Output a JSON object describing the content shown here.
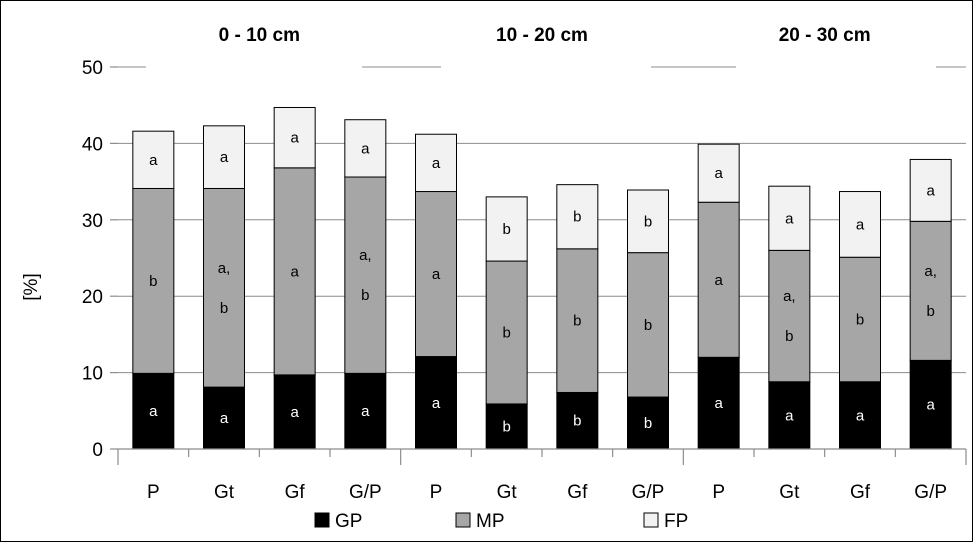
{
  "chart_data": {
    "type": "bar",
    "stacked": true,
    "ylabel": "[%]",
    "ylim": [
      0,
      50
    ],
    "yticks": [
      0,
      10,
      20,
      30,
      40,
      50
    ],
    "grid": "horizontal",
    "legend_position": "bottom",
    "groups": [
      {
        "title": "0 - 10 cm",
        "categories": [
          "P",
          "Gt",
          "Gf",
          "G/P"
        ],
        "GP": [
          9.9,
          8.1,
          9.7,
          9.9
        ],
        "MP": [
          24.2,
          26.0,
          27.1,
          25.7
        ],
        "FP": [
          7.5,
          8.2,
          7.9,
          7.5
        ],
        "GP_letters": [
          "a",
          "a",
          "a",
          "a"
        ],
        "MP_letters": [
          "b",
          "a,\nb",
          "a",
          "a,\nb"
        ],
        "FP_letters": [
          "a",
          "a",
          "a",
          "a"
        ]
      },
      {
        "title": "10 - 20 cm",
        "categories": [
          "P",
          "Gt",
          "Gf",
          "G/P"
        ],
        "GP": [
          12.1,
          5.9,
          7.4,
          6.8
        ],
        "MP": [
          21.6,
          18.7,
          18.8,
          18.9
        ],
        "FP": [
          7.5,
          8.4,
          8.4,
          8.2
        ],
        "GP_letters": [
          "a",
          "b",
          "b",
          "b"
        ],
        "MP_letters": [
          "a",
          "b",
          "b",
          "b"
        ],
        "FP_letters": [
          "a",
          "b",
          "b",
          "b"
        ]
      },
      {
        "title": "20 - 30 cm",
        "categories": [
          "P",
          "Gt",
          "Gf",
          "G/P"
        ],
        "GP": [
          12.0,
          8.8,
          8.8,
          11.6
        ],
        "MP": [
          20.3,
          17.2,
          16.3,
          18.2
        ],
        "FP": [
          7.6,
          8.4,
          8.6,
          8.1
        ],
        "GP_letters": [
          "a",
          "a",
          "a",
          "a"
        ],
        "MP_letters": [
          "a",
          "a,\nb",
          "b",
          "a,\nb"
        ],
        "FP_letters": [
          "a",
          "a",
          "a",
          "a"
        ]
      }
    ],
    "series": [
      {
        "name": "GP",
        "color": "#000000"
      },
      {
        "name": "MP",
        "color": "#a6a6a6"
      },
      {
        "name": "FP",
        "color": "#f2f2f2"
      }
    ]
  }
}
